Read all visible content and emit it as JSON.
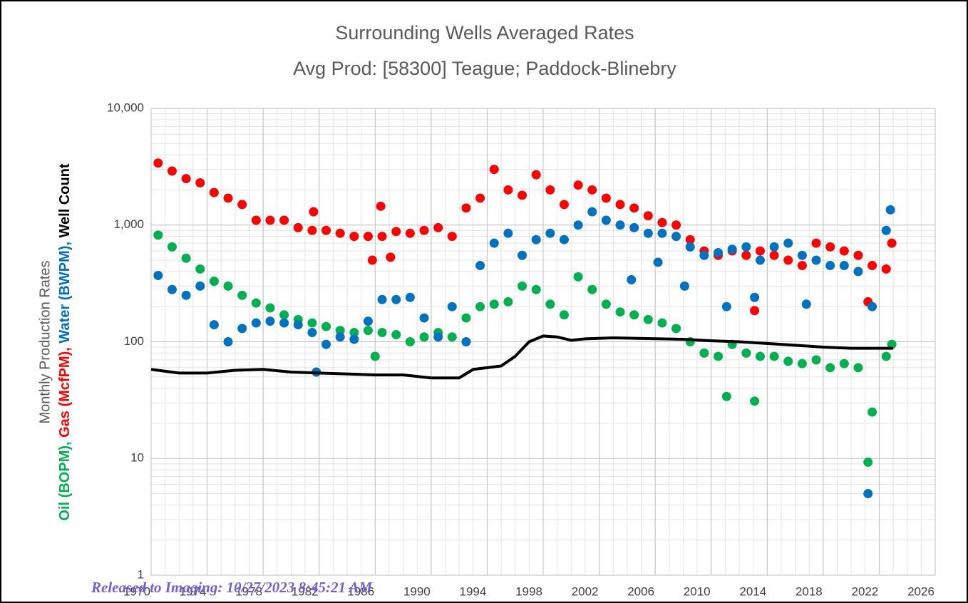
{
  "chart_data": {
    "type": "scatter",
    "title": "Surrounding Wells Averaged Rates",
    "subtitle": "Avg Prod: [58300] Teague; Paddock-Blinebry",
    "ylabel": "Monthly Production Rates",
    "ylabel_parts": [
      {
        "text": "Oil (BOPM), ",
        "color": "#00b050"
      },
      {
        "text": "Gas (McfPM), ",
        "color": "#ff0000"
      },
      {
        "text": "Water (BWPM), ",
        "color": "#0070c0"
      },
      {
        "text": "Well Count",
        "color": "#000000"
      }
    ],
    "xlim": [
      1970,
      2026
    ],
    "xticks": [
      1970,
      1974,
      1978,
      1982,
      1986,
      1990,
      1994,
      1998,
      2002,
      2006,
      2010,
      2014,
      2018,
      2022,
      2026
    ],
    "ylim": [
      1,
      10000
    ],
    "yscale": "log",
    "yticks": [
      1,
      10,
      100,
      {
        "value": 1000,
        "label": "1,000"
      },
      {
        "value": 10000,
        "label": "10,000"
      }
    ],
    "grid": true,
    "minor_grid": true,
    "series": [
      {
        "type": "scatter",
        "color": "#00b050",
        "x": [
          1970.5,
          1971.5,
          1972.5,
          1973.5,
          1974.5,
          1975.5,
          1976.5,
          1977.5,
          1978.5,
          1979.5,
          1980.5,
          1981.5,
          1982.5,
          1983.5,
          1984.5,
          1985.5,
          1986.5,
          1987.5,
          1988.5,
          1989.5,
          1990.5,
          1991.5,
          1992.5,
          1993.5,
          1994.5,
          1995.5,
          1996.5,
          1997.5,
          1998.5,
          1999.5,
          2000.5,
          2001.5,
          2002.5,
          2003.5,
          2004.5,
          2005.5,
          2006.5,
          2007.5,
          2008.5,
          2009.5,
          2010.5,
          2011.5,
          2012.5,
          2013.5,
          2014.5,
          2015.5,
          2016.5,
          2017.5,
          2018.5,
          2019.5,
          2020.5,
          2021.5,
          2022.5,
          1986.0,
          2011.1,
          2013.1,
          2021.2,
          2022.9
        ],
        "values": [
          820,
          650,
          520,
          420,
          330,
          300,
          250,
          215,
          195,
          170,
          155,
          145,
          135,
          125,
          120,
          125,
          120,
          115,
          100,
          110,
          120,
          110,
          160,
          200,
          210,
          220,
          300,
          280,
          210,
          170,
          360,
          280,
          210,
          180,
          170,
          155,
          145,
          130,
          100,
          80,
          75,
          95,
          80,
          75,
          75,
          68,
          65,
          70,
          60,
          65,
          60,
          25,
          75,
          75,
          34,
          31,
          9.3,
          95
        ]
      },
      {
        "type": "scatter",
        "color": "#ff0000",
        "x": [
          1970.5,
          1971.5,
          1972.5,
          1973.5,
          1974.5,
          1975.5,
          1976.5,
          1977.5,
          1978.5,
          1979.5,
          1980.5,
          1981.5,
          1982.5,
          1983.5,
          1984.5,
          1985.5,
          1986.5,
          1987.5,
          1988.5,
          1989.5,
          1990.5,
          1991.5,
          1992.5,
          1993.5,
          1994.5,
          1995.5,
          1996.5,
          1997.5,
          1998.5,
          1999.5,
          2000.5,
          2001.5,
          2002.5,
          2003.5,
          2004.5,
          2005.5,
          2006.5,
          2007.5,
          2008.5,
          2009.5,
          2010.5,
          2011.5,
          2012.5,
          2013.5,
          2014.5,
          2015.5,
          2016.5,
          2017.5,
          2018.5,
          2019.5,
          2020.5,
          2021.5,
          2022.5,
          1981.6,
          1986.4,
          1985.8,
          1987.1,
          2013.1,
          2021.2,
          2022.9
        ],
        "values": [
          3400,
          2900,
          2500,
          2300,
          1900,
          1700,
          1500,
          1100,
          1100,
          1100,
          950,
          900,
          900,
          850,
          800,
          800,
          800,
          880,
          850,
          900,
          950,
          800,
          1400,
          1700,
          3000,
          2000,
          1800,
          2700,
          2000,
          1500,
          2200,
          2000,
          1700,
          1500,
          1400,
          1200,
          1050,
          1000,
          750,
          600,
          550,
          600,
          550,
          600,
          550,
          500,
          450,
          700,
          650,
          600,
          550,
          450,
          420,
          1300,
          1450,
          500,
          530,
          185,
          220,
          700
        ]
      },
      {
        "type": "scatter",
        "color": "#0070c0",
        "x": [
          1970.5,
          1971.5,
          1972.5,
          1973.5,
          1974.5,
          1975.5,
          1976.5,
          1977.5,
          1978.5,
          1979.5,
          1980.5,
          1981.5,
          1982.5,
          1983.5,
          1984.5,
          1985.5,
          1986.5,
          1987.5,
          1988.5,
          1989.5,
          1990.5,
          1991.5,
          1992.5,
          1993.5,
          1994.5,
          1995.5,
          1996.5,
          1997.5,
          1998.5,
          1999.5,
          2000.5,
          2001.5,
          2002.5,
          2003.5,
          2004.5,
          2005.5,
          2006.5,
          2007.5,
          2008.5,
          2009.5,
          2010.5,
          2011.5,
          2012.5,
          2013.5,
          2014.5,
          2015.5,
          2016.5,
          2017.5,
          2018.5,
          2019.5,
          2020.5,
          2021.5,
          2022.5,
          1981.8,
          2004.3,
          2006.2,
          2011.1,
          2013.1,
          2016.8,
          2008.1,
          2021.2,
          2022.8
        ],
        "values": [
          370,
          280,
          250,
          300,
          140,
          100,
          130,
          145,
          150,
          145,
          140,
          120,
          95,
          110,
          105,
          150,
          230,
          230,
          240,
          160,
          110,
          200,
          100,
          450,
          700,
          850,
          550,
          750,
          850,
          750,
          1000,
          1300,
          1100,
          1000,
          950,
          850,
          850,
          800,
          650,
          550,
          580,
          620,
          650,
          500,
          650,
          700,
          550,
          500,
          450,
          450,
          400,
          200,
          900,
          55,
          340,
          480,
          200,
          240,
          210,
          300,
          5,
          1350
        ]
      },
      {
        "type": "line",
        "color": "#000000",
        "x": [
          1970,
          1972,
          1974,
          1976,
          1978,
          1980,
          1982,
          1986,
          1988,
          1990,
          1992,
          1993,
          1995,
          1996,
          1997,
          1998,
          1999,
          2000,
          2001,
          2003,
          2008,
          2010,
          2012,
          2015,
          2018,
          2020,
          2023
        ],
        "values": [
          58,
          54,
          54,
          57,
          58,
          55,
          54,
          52,
          52,
          49,
          49,
          58,
          62,
          75,
          100,
          112,
          110,
          103,
          106,
          108,
          105,
          102,
          100,
          95,
          90,
          88,
          88
        ]
      }
    ]
  },
  "stamp": "Released to Imaging: 10/27/2023 8:45:21 AM"
}
